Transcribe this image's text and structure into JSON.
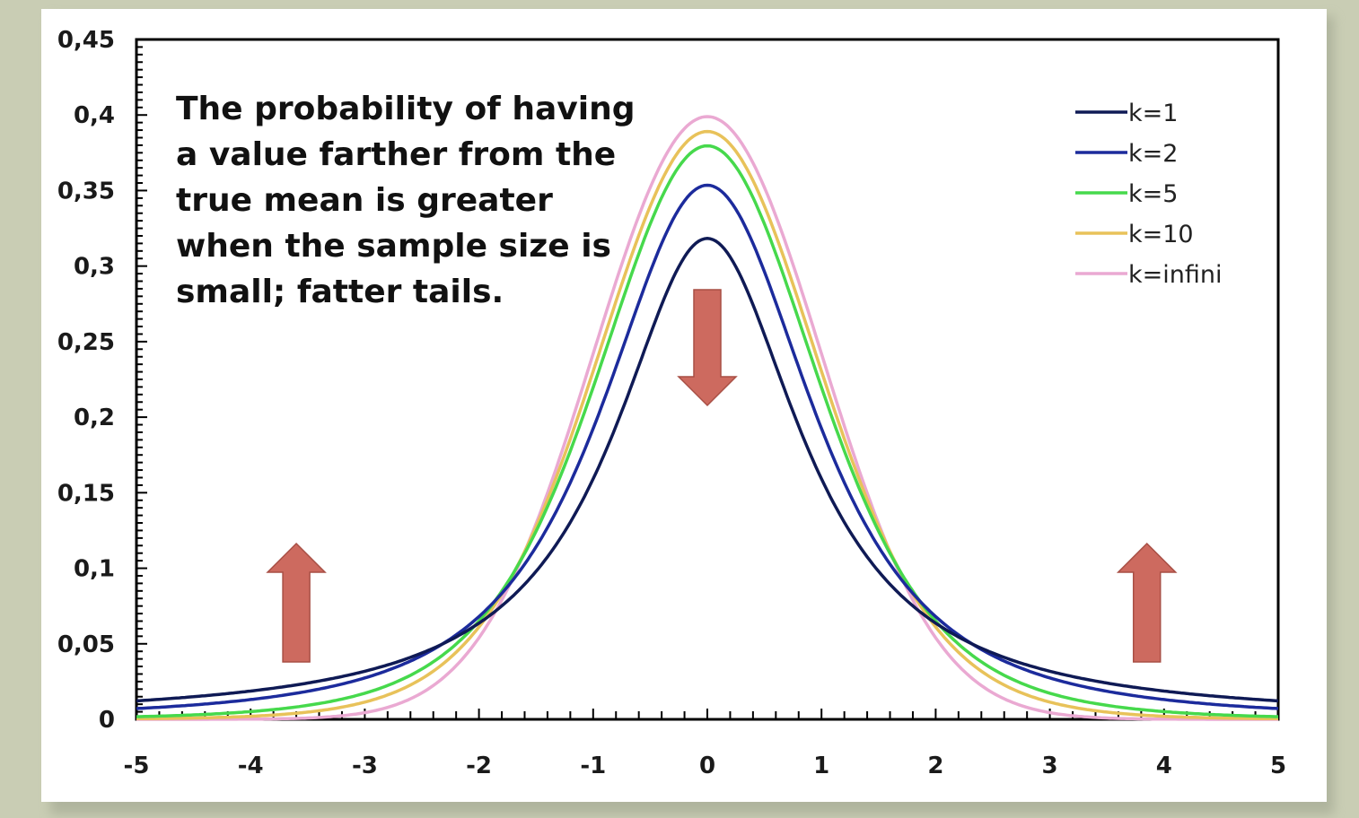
{
  "chart_data": {
    "type": "line",
    "title": "",
    "xlabel": "",
    "ylabel": "",
    "xlim": [
      -5,
      5
    ],
    "ylim": [
      0,
      0.45
    ],
    "x_ticks": [
      "-5",
      "-4",
      "-3",
      "-2",
      "-1",
      "0",
      "1",
      "2",
      "3",
      "4",
      "5"
    ],
    "y_ticks": [
      "0",
      "0,05",
      "0,1",
      "0,15",
      "0,2",
      "0,25",
      "0,3",
      "0,35",
      "0,4",
      "0,45"
    ],
    "grid": false,
    "legend_position": "top-right",
    "series": [
      {
        "name": "k=1",
        "color": "#0f1a55",
        "peak": 0.318
      },
      {
        "name": "k=2",
        "color": "#1c2b9c",
        "peak": 0.354
      },
      {
        "name": "k=5",
        "color": "#46d94c",
        "peak": 0.38
      },
      {
        "name": "k=10",
        "color": "#e8c25a",
        "peak": 0.389
      },
      {
        "name": "k=infini",
        "color": "#eaa9d2",
        "peak": 0.399
      }
    ],
    "annotation_lines": [
      "The probability of having",
      "a value farther from the",
      "true mean is greater",
      "when the sample size is",
      "small; fatter tails."
    ],
    "arrows": [
      {
        "direction": "up",
        "x": -3.6
      },
      {
        "direction": "down",
        "x": 0
      },
      {
        "direction": "up",
        "x": 3.85
      }
    ],
    "arrow_color": "#cd6a5f"
  }
}
